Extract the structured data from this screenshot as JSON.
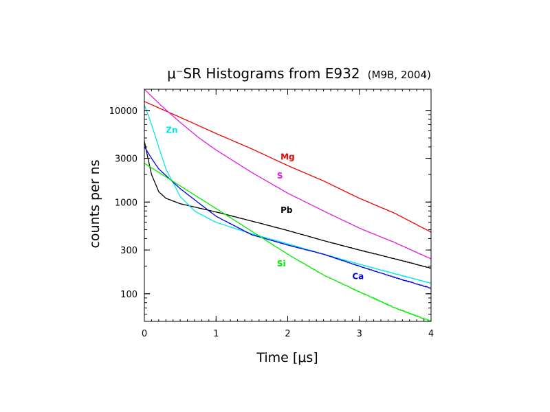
{
  "chart_data": {
    "type": "line",
    "title": "μ⁻SR Histograms from E932",
    "subtitle": "(M9B, 2004)",
    "xlabel": "Time [μs]",
    "ylabel": "counts per ns",
    "xlim": [
      0,
      4
    ],
    "ylim": [
      50,
      17000
    ],
    "yscale": "log",
    "x_ticks": [
      "0",
      "1",
      "2",
      "3",
      "4"
    ],
    "y_ticks": [
      "100",
      "300",
      "1000",
      "3000",
      "10000"
    ],
    "y_tick_values": [
      100,
      300,
      1000,
      3000,
      10000
    ],
    "grid": false,
    "legend": "none",
    "series": [
      {
        "name": "Mg",
        "color": "#ee0000",
        "x": [
          0,
          0.5,
          1,
          1.5,
          2,
          2.5,
          3,
          3.5,
          4
        ],
        "values": [
          12500,
          8400,
          5600,
          3800,
          2500,
          1700,
          1100,
          750,
          470
        ]
      },
      {
        "name": "S",
        "color": "#e020e0",
        "x": [
          0,
          0.25,
          0.5,
          0.75,
          1,
          1.5,
          2,
          2.5,
          3,
          3.5,
          4
        ],
        "values": [
          17000,
          11000,
          7400,
          5100,
          3700,
          2100,
          1250,
          800,
          520,
          360,
          240
        ]
      },
      {
        "name": "Pb",
        "color": "#000000",
        "x": [
          0,
          0.05,
          0.1,
          0.2,
          0.3,
          0.5,
          1,
          1.5,
          2,
          2.5,
          3,
          3.5,
          4
        ],
        "values": [
          4600,
          3000,
          2000,
          1300,
          1100,
          960,
          780,
          620,
          490,
          380,
          300,
          240,
          190
        ]
      },
      {
        "name": "Zn",
        "color": "#00e8e8",
        "x": [
          0,
          0.1,
          0.2,
          0.3,
          0.5,
          0.7,
          1,
          1.5,
          2,
          2.5,
          3,
          3.5,
          4
        ],
        "values": [
          11500,
          7000,
          4000,
          2300,
          1150,
          800,
          600,
          450,
          350,
          270,
          210,
          165,
          130
        ]
      },
      {
        "name": "Ca",
        "color": "#0000dd",
        "x": [
          0,
          0.1,
          0.2,
          0.5,
          1,
          1.5,
          2,
          2.5,
          3,
          3.5,
          4
        ],
        "values": [
          4000,
          3000,
          2300,
          1400,
          700,
          440,
          340,
          270,
          200,
          150,
          115
        ]
      },
      {
        "name": "Si",
        "color": "#00ee00",
        "x": [
          0,
          0.5,
          1,
          1.5,
          2,
          2.5,
          3,
          3.5,
          4
        ],
        "values": [
          2650,
          1500,
          850,
          480,
          270,
          160,
          105,
          70,
          50
        ]
      }
    ],
    "annotations": [
      {
        "text": "Mg",
        "x": 1.9,
        "y": 2900,
        "color": "#ee0000"
      },
      {
        "text": "S",
        "x": 1.85,
        "y": 1800,
        "color": "#e020e0"
      },
      {
        "text": "Pb",
        "x": 1.9,
        "y": 760,
        "color": "#000000"
      },
      {
        "text": "Zn",
        "x": 0.3,
        "y": 5700,
        "color": "#00e8e8"
      },
      {
        "text": "Ca",
        "x": 2.9,
        "y": 144,
        "color": "#0000dd"
      },
      {
        "text": "Si",
        "x": 1.85,
        "y": 198,
        "color": "#00ee00"
      }
    ]
  }
}
